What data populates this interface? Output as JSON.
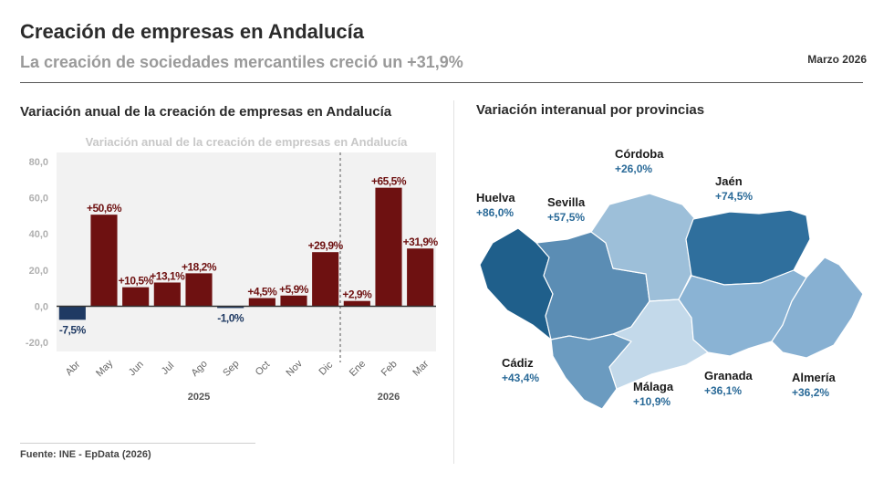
{
  "header": {
    "title": "Creación de empresas en Andalucía",
    "subtitle": "La creación de sociedades mercantiles creció un +31,9%",
    "date": "Marzo 2026"
  },
  "left_panel": {
    "title": "Variación anual de la creación de empresas en Andalucía"
  },
  "right_panel": {
    "title": "Variación interanual por provincias"
  },
  "footer": {
    "source": "Fuente: INE - EpData (2026)"
  },
  "colors": {
    "positive": "#6e1111",
    "negative": "#1f3a63",
    "plot_bg": "#f2f2f2"
  },
  "chart_data": [
    {
      "type": "bar",
      "title": "Variación anual de la creación de empresas en Andalucía",
      "categories": [
        "Abr",
        "May",
        "Jun",
        "Jul",
        "Ago",
        "Sep",
        "Oct",
        "Nov",
        "Dic",
        "Ene",
        "Feb",
        "Mar"
      ],
      "values": [
        -7.5,
        50.6,
        10.5,
        13.1,
        18.2,
        -1.0,
        4.5,
        5.9,
        29.9,
        2.9,
        65.5,
        31.9
      ],
      "data_labels": [
        "-7,5%",
        "+50,6%",
        "+10,5%",
        "+13,1%",
        "+18,2%",
        "-1,0%",
        "+4,5%",
        "+5,9%",
        "+29,9%",
        "+2,9%",
        "+65,5%",
        "+31,9%"
      ],
      "yticks": [
        "80,0",
        "60,0",
        "40,0",
        "20,0",
        "0,0",
        "-20,0"
      ],
      "ylim": [
        -25,
        85
      ],
      "year_groups": [
        {
          "label": "2025",
          "from": 0,
          "to": 8
        },
        {
          "label": "2026",
          "from": 9,
          "to": 11
        }
      ],
      "grid": false
    },
    {
      "type": "choropleth",
      "title": "Variación interanual por provincias",
      "regions": [
        {
          "name": "Huelva",
          "value": "+86,0%",
          "color": "#1f5f8b"
        },
        {
          "name": "Sevilla",
          "value": "+57,5%",
          "color": "#5b8db4"
        },
        {
          "name": "Córdoba",
          "value": "+26,0%",
          "color": "#9dbfd9"
        },
        {
          "name": "Jaén",
          "value": "+74,5%",
          "color": "#2f6f9d"
        },
        {
          "name": "Cádiz",
          "value": "+43,4%",
          "color": "#6b9bc0"
        },
        {
          "name": "Málaga",
          "value": "+10,9%",
          "color": "#c3d9ea"
        },
        {
          "name": "Granada",
          "value": "+36,1%",
          "color": "#8ab3d4"
        },
        {
          "name": "Almería",
          "value": "+36,2%",
          "color": "#87b0d2"
        }
      ]
    }
  ]
}
